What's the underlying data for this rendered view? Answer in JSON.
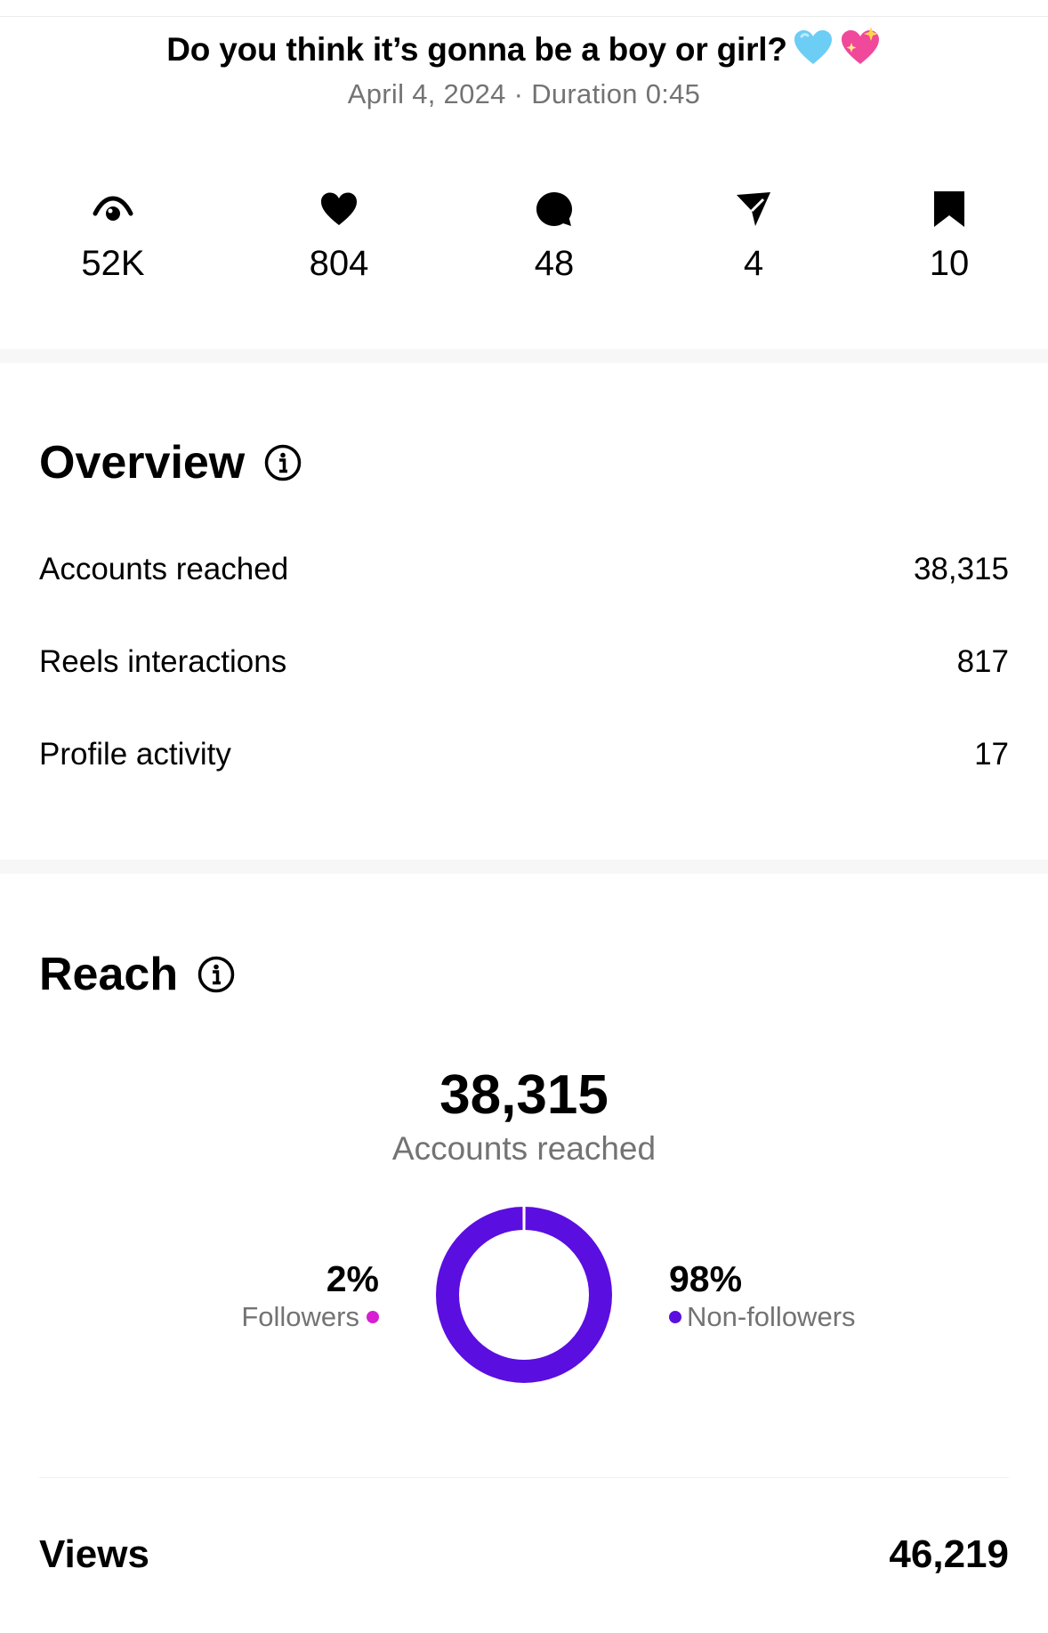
{
  "reel": {
    "title": "Do you think it’s gonna be a boy or girl?",
    "date": "April 4, 2024",
    "separator": "·",
    "duration": "Duration 0:45"
  },
  "stats": [
    {
      "icon": "eye-icon",
      "value": "52K"
    },
    {
      "icon": "heart-icon",
      "value": "804"
    },
    {
      "icon": "comment-icon",
      "value": "48"
    },
    {
      "icon": "share-icon",
      "value": "4"
    },
    {
      "icon": "bookmark-icon",
      "value": "10"
    }
  ],
  "overview": {
    "title": "Overview",
    "rows": [
      {
        "label": "Accounts reached",
        "value": "38,315"
      },
      {
        "label": "Reels interactions",
        "value": "817"
      },
      {
        "label": "Profile activity",
        "value": "17"
      }
    ]
  },
  "reach": {
    "title": "Reach",
    "total": "38,315",
    "total_label": "Accounts reached",
    "followers_pct": "2%",
    "followers_label": "Followers",
    "non_followers_pct": "98%",
    "non_followers_label": "Non-followers",
    "followers_share": 0.02,
    "colors": {
      "followers": "#d61fd1",
      "non_followers": "#5b0ee0"
    }
  },
  "views": {
    "label": "Views",
    "value": "46,219"
  }
}
